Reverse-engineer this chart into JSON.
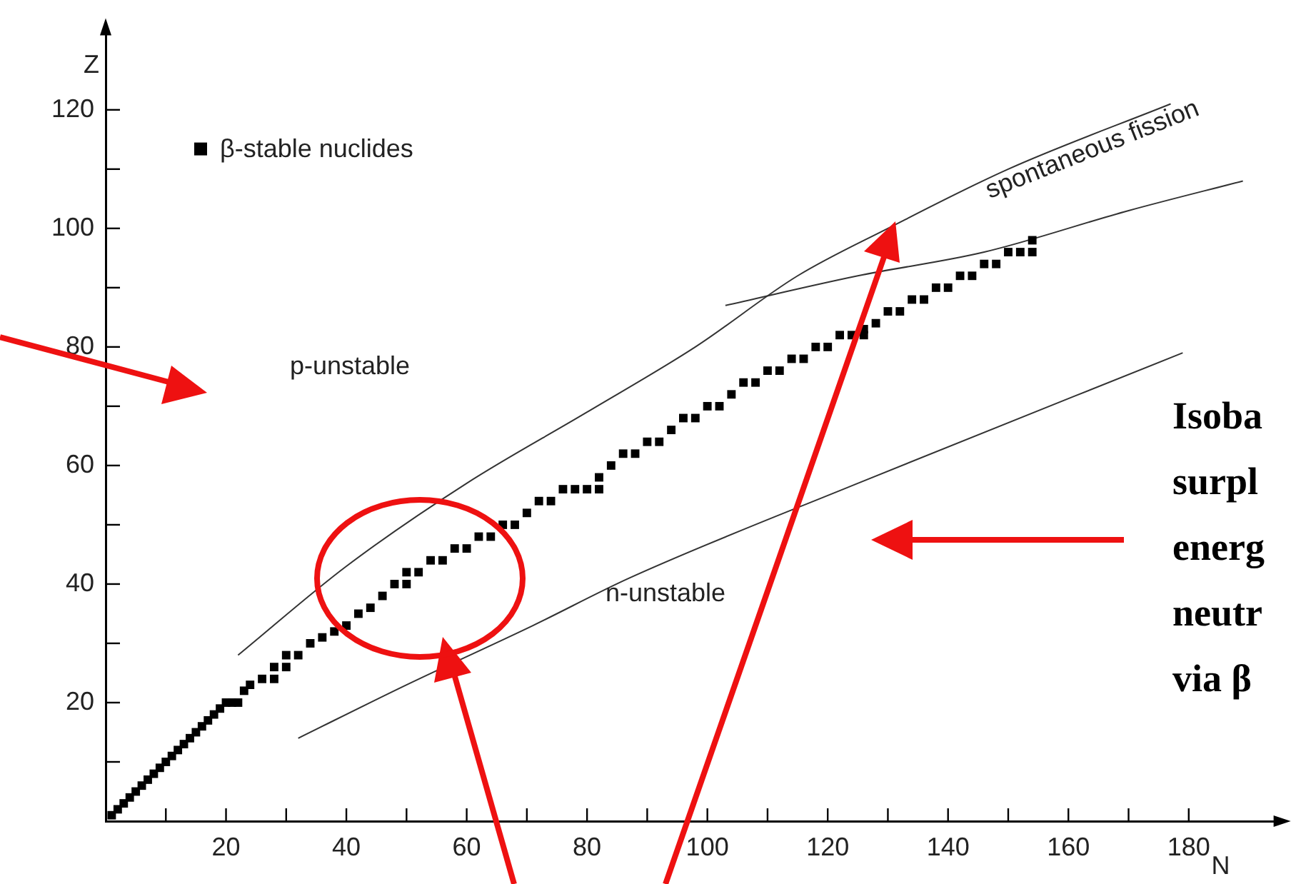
{
  "chart_data": {
    "type": "scatter",
    "xlabel": "N",
    "ylabel": "Z",
    "xlim": [
      0,
      196
    ],
    "ylim": [
      0,
      134
    ],
    "xticks": [
      {
        "value": 10,
        "label": null
      },
      20,
      {
        "value": 30,
        "label": null
      },
      40,
      {
        "value": 50,
        "label": null
      },
      60,
      {
        "value": 70,
        "label": null
      },
      80,
      {
        "value": 90,
        "label": null
      },
      100,
      {
        "value": 110,
        "label": null
      },
      120,
      {
        "value": 130,
        "label": null
      },
      140,
      {
        "value": 150,
        "label": null
      },
      160,
      {
        "value": 170,
        "label": null
      },
      180
    ],
    "yticks": [
      {
        "value": 10,
        "label": null
      },
      20,
      {
        "value": 30,
        "label": null
      },
      40,
      {
        "value": 50,
        "label": null
      },
      60,
      {
        "value": 70,
        "label": null
      },
      80,
      {
        "value": 90,
        "label": null
      },
      100,
      {
        "value": 110,
        "label": null
      },
      120
    ],
    "grid": false,
    "legend": "top left",
    "series": [
      {
        "name": "β-stable nuclides",
        "type": "scatter",
        "marker": "square",
        "color": "#000000",
        "x": [
          1,
          2,
          3,
          4,
          5,
          6,
          7,
          8,
          9,
          10,
          11,
          12,
          13,
          14,
          15,
          16,
          17,
          18,
          19,
          20,
          21,
          22,
          23,
          24,
          26,
          28,
          28,
          30,
          30,
          32,
          34,
          36,
          38,
          40,
          42,
          44,
          46,
          48,
          50,
          50,
          52,
          54,
          56,
          58,
          60,
          62,
          64,
          66,
          68,
          70,
          72,
          74,
          76,
          78,
          80,
          82,
          82,
          84,
          86,
          88,
          90,
          92,
          94,
          96,
          98,
          100,
          102,
          104,
          106,
          108,
          110,
          112,
          114,
          116,
          118,
          120,
          122,
          124,
          126,
          126,
          128,
          130,
          132,
          134,
          136,
          138,
          140,
          142,
          144,
          146,
          148,
          150,
          152,
          154,
          154
        ],
        "values": [
          1,
          2,
          3,
          4,
          5,
          6,
          7,
          8,
          9,
          10,
          11,
          12,
          13,
          14,
          15,
          16,
          17,
          18,
          19,
          20,
          20,
          20,
          22,
          23,
          24,
          24,
          26,
          26,
          28,
          28,
          30,
          31,
          32,
          33,
          35,
          36,
          38,
          40,
          40,
          42,
          42,
          44,
          44,
          46,
          46,
          48,
          48,
          50,
          50,
          52,
          54,
          54,
          56,
          56,
          56,
          56,
          58,
          60,
          62,
          62,
          64,
          64,
          66,
          68,
          68,
          70,
          70,
          72,
          74,
          74,
          76,
          76,
          78,
          78,
          80,
          80,
          82,
          82,
          82,
          83,
          84,
          86,
          86,
          88,
          88,
          90,
          90,
          92,
          92,
          94,
          94,
          96,
          96,
          98,
          96
        ]
      },
      {
        "type": "line",
        "color": "#333333",
        "marker": "none",
        "line_style": "solid",
        "x": [
          22,
          40,
          60,
          80,
          98,
          115,
          130,
          150,
          177
        ],
        "values": [
          28,
          43,
          57,
          69,
          80,
          92,
          100,
          110,
          121
        ]
      },
      {
        "type": "line",
        "color": "#333333",
        "marker": "none",
        "line_style": "solid",
        "x": [
          103,
          125,
          146,
          170,
          189
        ],
        "values": [
          87,
          92,
          96,
          103,
          108
        ]
      },
      {
        "type": "line",
        "color": "#333333",
        "marker": "none",
        "line_style": "solid",
        "x": [
          32,
          50,
          71,
          87,
          125,
          179
        ],
        "values": [
          14,
          23,
          33,
          41,
          57,
          79
        ]
      }
    ],
    "annotations": [
      "p-unstable",
      "n-unstable",
      "spontaneous fission",
      "Isoba",
      "surpl",
      "energ",
      "neutr",
      "via β"
    ]
  }
}
